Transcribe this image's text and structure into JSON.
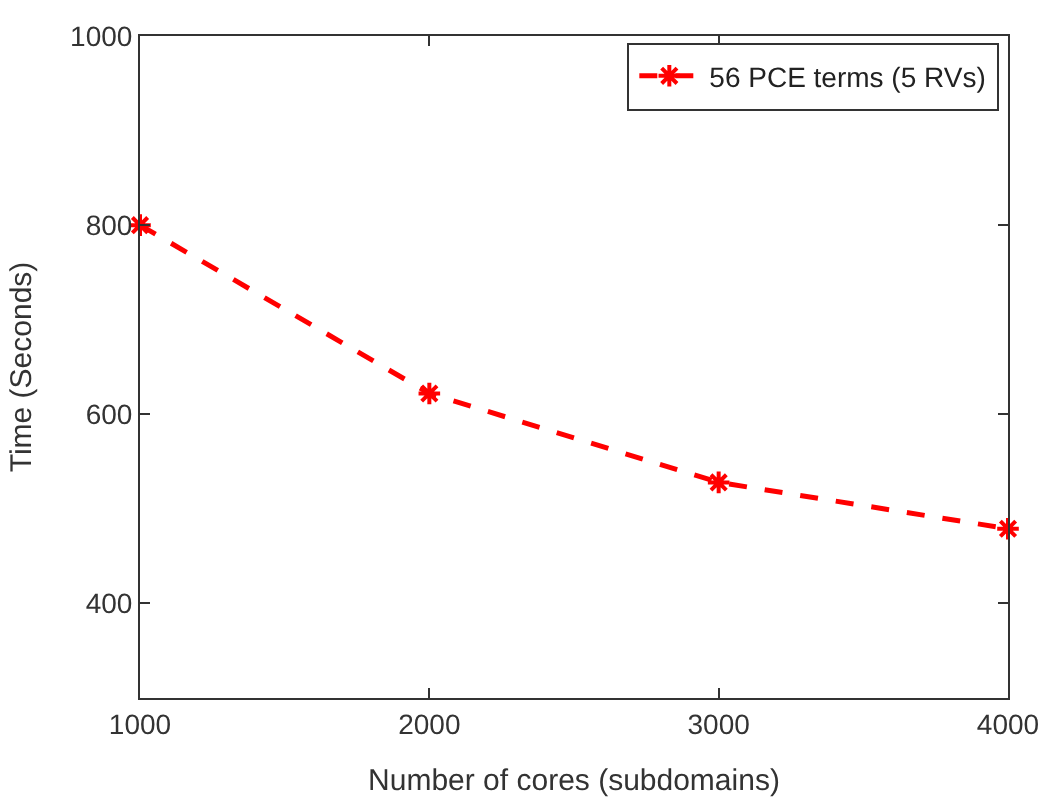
{
  "chart_data": {
    "type": "line",
    "xlabel": "Number of cores (subdomains)",
    "ylabel": "Time (Seconds)",
    "x": [
      1000,
      2000,
      3000,
      4000
    ],
    "series": [
      {
        "name": "56 PCE terms (5 RVs)",
        "color": "#ff0000",
        "values": [
          800,
          622,
          528,
          479
        ]
      }
    ],
    "xlim": [
      1000,
      4000
    ],
    "xticks": [
      1000,
      2000,
      3000,
      4000
    ],
    "ylim": [
      300,
      1000
    ],
    "yticks": [
      400,
      600,
      800,
      1000
    ],
    "grid": false,
    "legend": "top right",
    "marker": "cross",
    "line_style": "dashed"
  }
}
